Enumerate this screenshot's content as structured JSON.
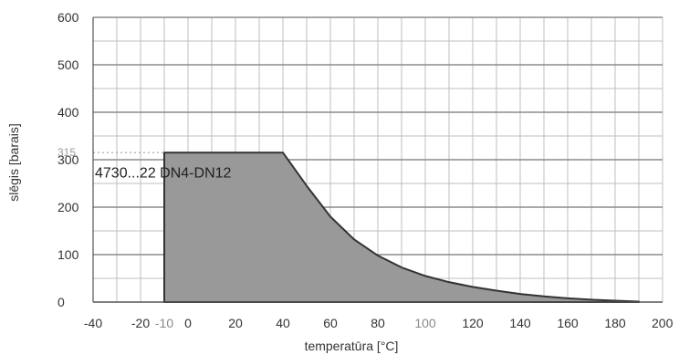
{
  "chart_data": {
    "type": "area",
    "title": "",
    "xlabel": "temperatūra [°C]",
    "ylabel": "slēgis [barais]",
    "xlim": [
      -40,
      200
    ],
    "ylim": [
      0,
      600
    ],
    "x_ticks": [
      {
        "value": -40,
        "label": "-40",
        "color": "#333333"
      },
      {
        "value": -20,
        "label": "-20",
        "color": "#333333"
      },
      {
        "value": -10,
        "label": "-10",
        "color": "#8a8a8a"
      },
      {
        "value": 0,
        "label": "0",
        "color": "#333333"
      },
      {
        "value": 20,
        "label": "20",
        "color": "#333333"
      },
      {
        "value": 40,
        "label": "40",
        "color": "#333333"
      },
      {
        "value": 60,
        "label": "60",
        "color": "#333333"
      },
      {
        "value": 80,
        "label": "80",
        "color": "#333333"
      },
      {
        "value": 100,
        "label": "100",
        "color": "#8a8a8a"
      },
      {
        "value": 120,
        "label": "120",
        "color": "#333333"
      },
      {
        "value": 140,
        "label": "140",
        "color": "#333333"
      },
      {
        "value": 160,
        "label": "160",
        "color": "#333333"
      },
      {
        "value": 180,
        "label": "180",
        "color": "#333333"
      },
      {
        "value": 200,
        "label": "200",
        "color": "#333333"
      }
    ],
    "y_ticks": [
      {
        "value": 0,
        "label": "0"
      },
      {
        "value": 100,
        "label": "100"
      },
      {
        "value": 200,
        "label": "200"
      },
      {
        "value": 300,
        "label": "300"
      },
      {
        "value": 400,
        "label": "400"
      },
      {
        "value": 500,
        "label": "500"
      },
      {
        "value": 600,
        "label": "600"
      }
    ],
    "x_grid": [
      -40,
      -30,
      -20,
      -10,
      0,
      10,
      20,
      30,
      40,
      50,
      60,
      70,
      80,
      90,
      100,
      110,
      120,
      130,
      140,
      150,
      160,
      170,
      180,
      190,
      200
    ],
    "y_grid": [
      0,
      50,
      100,
      150,
      200,
      250,
      300,
      350,
      400,
      450,
      500,
      550,
      600
    ],
    "grid": true,
    "reference_line": {
      "value": 315,
      "label": "315"
    },
    "series": [
      {
        "name": "4730...22 DN4-DN12",
        "x": [
          -10,
          40,
          50,
          60,
          70,
          80,
          90,
          100,
          110,
          120,
          130,
          140,
          150,
          160,
          170,
          180,
          190
        ],
        "values": [
          315,
          315,
          245,
          180,
          132,
          98,
          73,
          55,
          42,
          32,
          24,
          17,
          12,
          8,
          5,
          3,
          1
        ]
      }
    ],
    "fill_color": "#999999",
    "line_color": "#333333",
    "grid_color": "#bfbfbf"
  }
}
